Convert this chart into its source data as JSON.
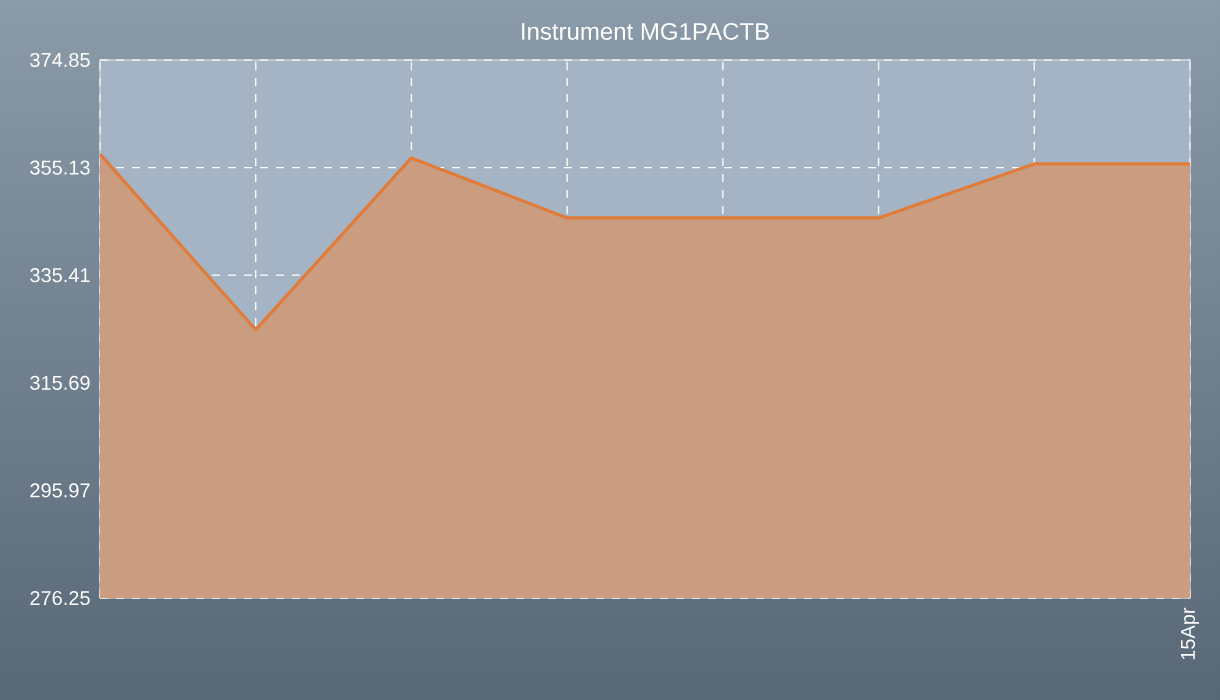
{
  "chart_data": {
    "type": "area",
    "title": "Instrument MG1PACTB",
    "categories": [
      null,
      null,
      null,
      null,
      null,
      null,
      null,
      "15Apr"
    ],
    "series": [
      {
        "color": "#e07b39",
        "values": [
          357.6,
          325.4,
          356.9,
          345.9,
          345.9,
          345.9,
          355.8,
          355.8
        ]
      }
    ],
    "ylim": [
      276.25,
      374.85
    ],
    "yticks": [
      276.25,
      295.97,
      315.69,
      335.41,
      355.13,
      374.85
    ],
    "grid": true
  }
}
